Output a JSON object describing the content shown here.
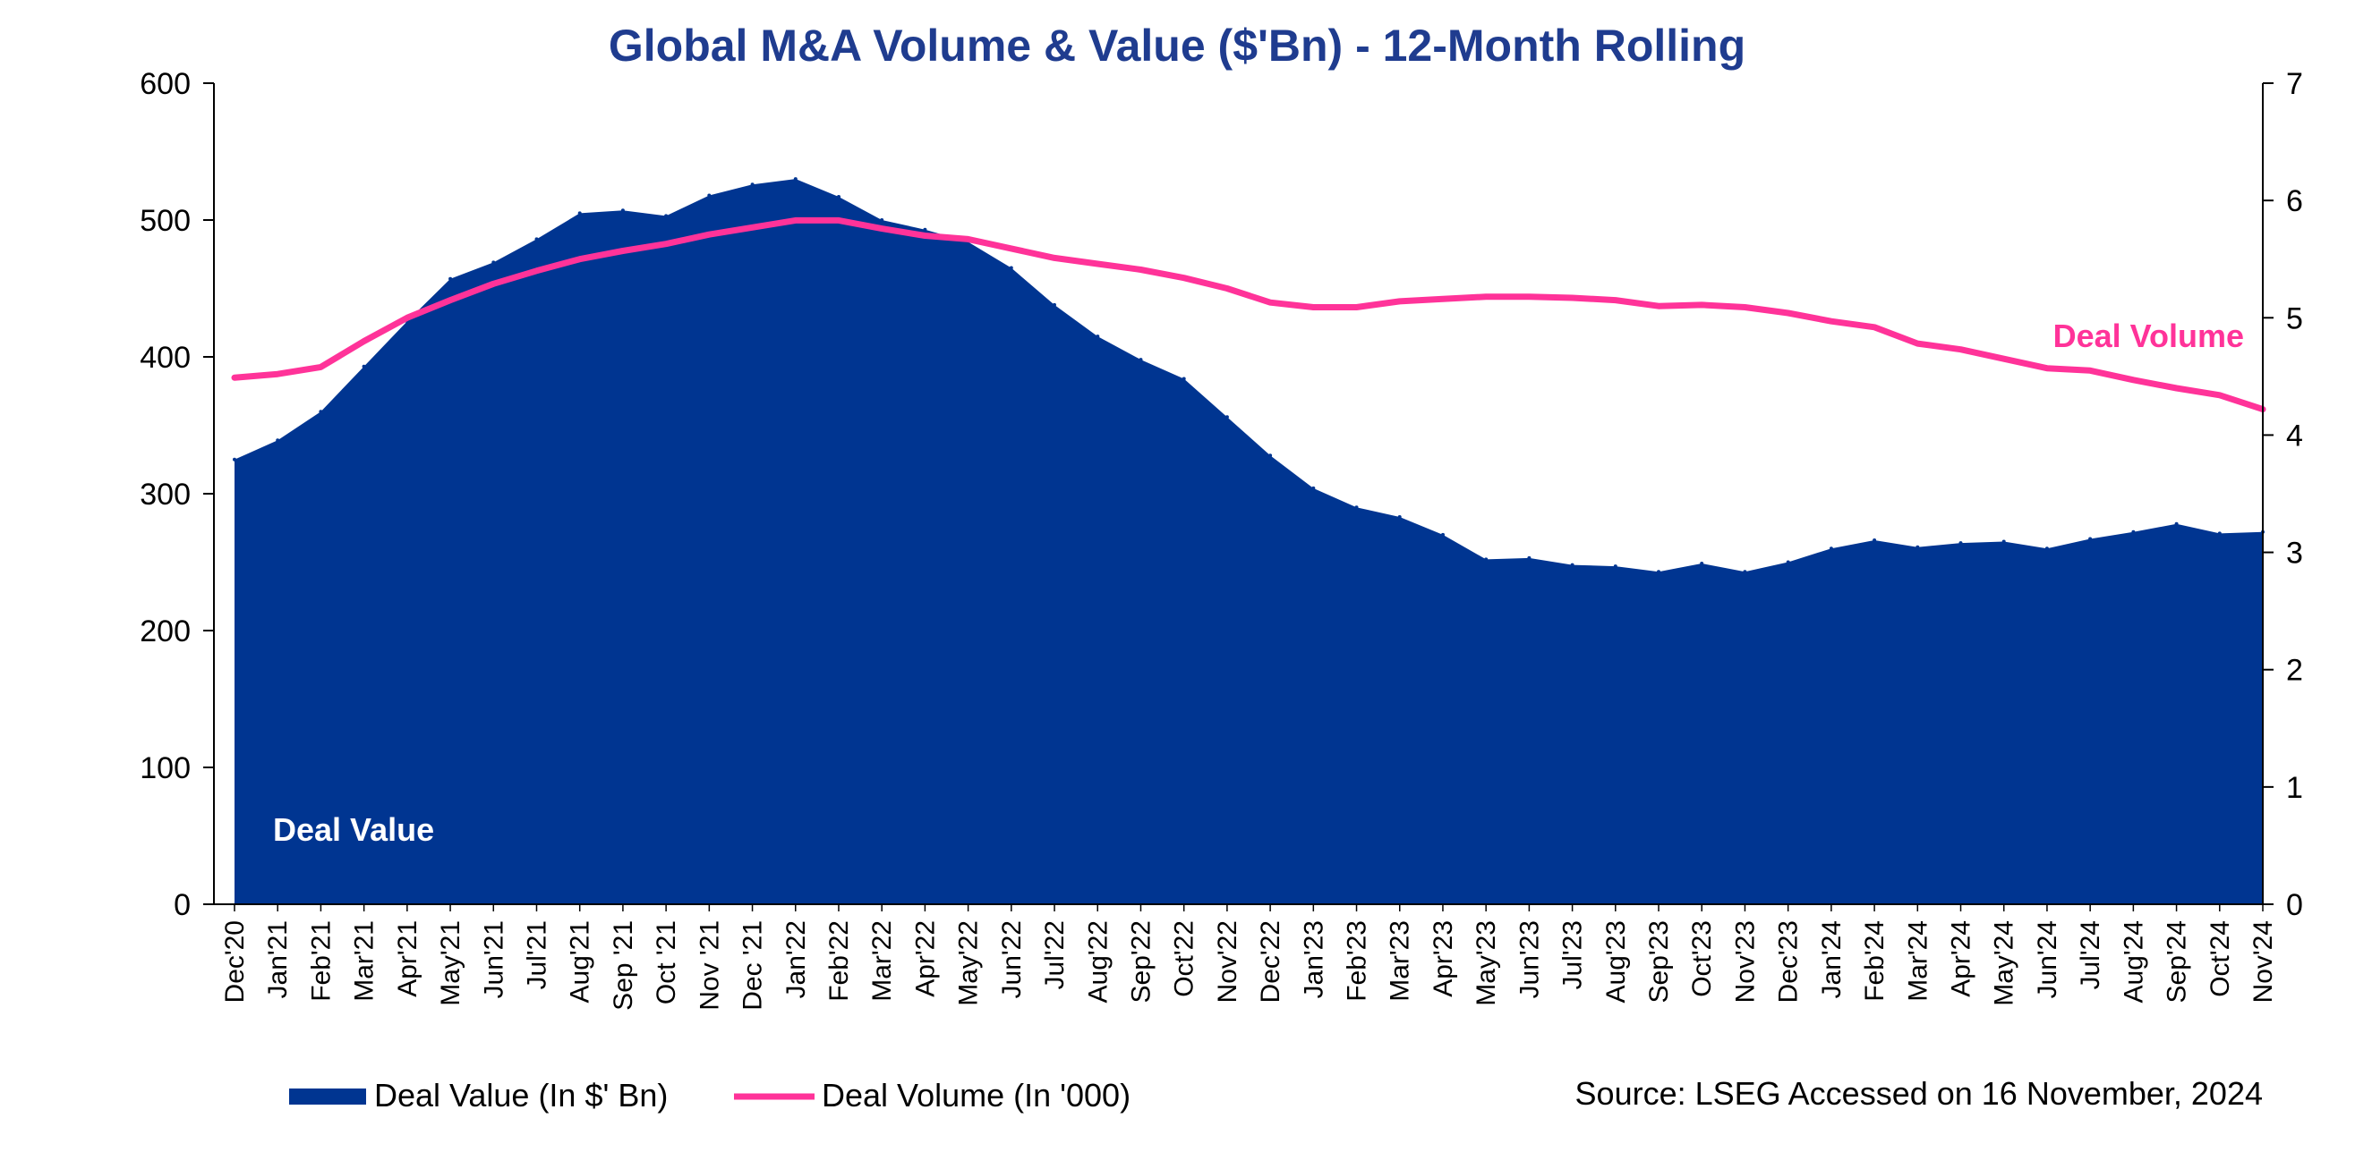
{
  "chart_data": {
    "type": "area",
    "title": "Global M&A Volume & Value ($'Bn) - 12-Month Rolling",
    "categories": [
      "Dec'20",
      "Jan'21",
      "Feb'21",
      "Mar'21",
      "Apr'21",
      "May'21",
      "Jun'21",
      "Jul'21",
      "Aug'21",
      "Sep '21",
      "Oct '21",
      "Nov '21",
      "Dec '21",
      "Jan'22",
      "Feb'22",
      "Mar'22",
      "Apr'22",
      "May'22",
      "Jun'22",
      "Jul'22",
      "Aug'22",
      "Sep'22",
      "Oct'22",
      "Nov'22",
      "Dec'22",
      "Jan'23",
      "Feb'23",
      "Mar'23",
      "Apr'23",
      "May'23",
      "Jun'23",
      "Jul'23",
      "Aug'23",
      "Sep'23",
      "Oct'23",
      "Nov'23",
      "Dec'23",
      "Jan'24",
      "Feb'24",
      "Mar'24",
      "Apr'24",
      "May'24",
      "Jun'24",
      "Jul'24",
      "Aug'24",
      "Sep'24",
      "Oct'24",
      "Nov'24"
    ],
    "series": [
      {
        "name": "Deal Value (In $' Bn)",
        "type": "area",
        "axis": "left",
        "color": "#003591",
        "values": [
          325,
          339,
          360,
          393,
          426,
          457,
          469,
          486,
          505,
          507,
          503,
          518,
          526,
          530,
          517,
          500,
          493,
          484,
          465,
          438,
          415,
          398,
          384,
          356,
          328,
          304,
          290,
          283,
          270,
          252,
          253,
          248,
          247,
          243,
          249,
          243,
          250,
          260,
          266,
          261,
          264,
          265,
          260,
          267,
          272,
          278,
          271,
          272
        ]
      },
      {
        "name": "Deal Volume (In '000)",
        "type": "line",
        "axis": "right",
        "color": "#ff3399",
        "values": [
          4.49,
          4.52,
          4.58,
          4.8,
          5.0,
          5.15,
          5.29,
          5.4,
          5.5,
          5.57,
          5.63,
          5.71,
          5.77,
          5.83,
          5.83,
          5.76,
          5.7,
          5.67,
          5.59,
          5.51,
          5.46,
          5.41,
          5.34,
          5.25,
          5.13,
          5.09,
          5.09,
          5.14,
          5.16,
          5.18,
          5.18,
          5.17,
          5.15,
          5.1,
          5.11,
          5.09,
          5.04,
          4.97,
          4.92,
          4.78,
          4.73,
          4.65,
          4.57,
          4.55,
          4.47,
          4.4,
          4.34,
          4.22
        ]
      }
    ],
    "y_left": {
      "min": 0,
      "max": 600,
      "ticks": [
        0,
        100,
        200,
        300,
        400,
        500,
        600
      ]
    },
    "y_right": {
      "min": 0,
      "max": 7,
      "ticks": [
        0,
        1,
        2,
        3,
        4,
        5,
        6,
        7
      ]
    },
    "annotations": {
      "area_label": "Deal Value",
      "line_label": "Deal Volume"
    },
    "legend_position": "bottom-left",
    "grid": false
  },
  "source_note": "Source: LSEG Accessed on 16 November, 2024"
}
